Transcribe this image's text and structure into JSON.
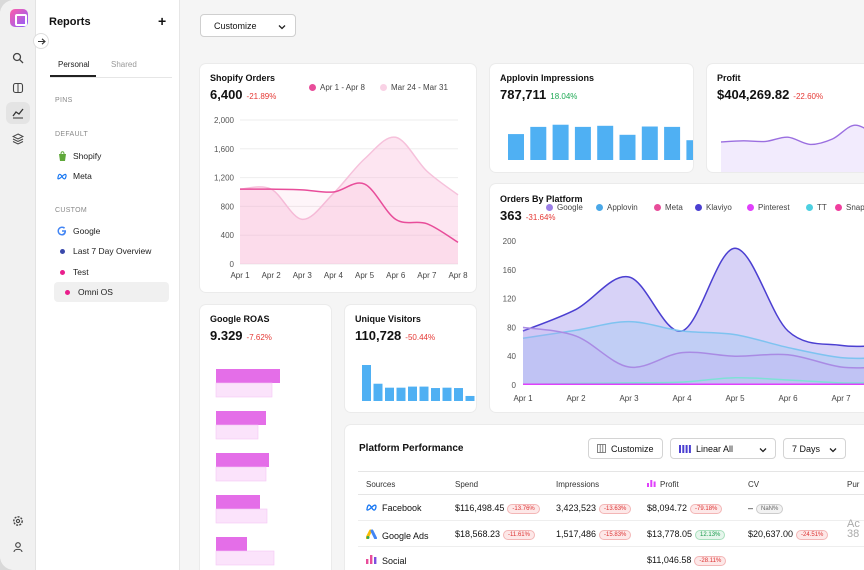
{
  "sidebar": {
    "title": "Reports",
    "tabs": [
      "Personal",
      "Shared"
    ],
    "sections": {
      "pins": "PINS",
      "default": "DEFAULT",
      "custom": "CUSTOM"
    },
    "default_items": [
      {
        "label": "Shopify",
        "icon": "shopify-icon"
      },
      {
        "label": "Meta",
        "icon": "meta-icon"
      }
    ],
    "custom_items": [
      {
        "label": "Google",
        "icon": "google-icon"
      },
      {
        "label": "Last 7 Day Overview",
        "color": "#3949ab"
      },
      {
        "label": "Test",
        "color": "#e91e8c"
      },
      {
        "label": "Omni OS",
        "color": "#e91e8c"
      }
    ]
  },
  "toolbar": {
    "customize_label": "Customize"
  },
  "shopify_orders": {
    "title": "Shopify Orders",
    "value": "6,400",
    "delta": "-21.89%",
    "legend": [
      "Apr 1 - Apr 8",
      "Mar 24 - Mar 31"
    ],
    "legend_colors": [
      "#e84d9a",
      "#f9d2e5"
    ],
    "chart_data": {
      "type": "area",
      "x": [
        "Apr 1",
        "Apr 2",
        "Apr 3",
        "Apr 4",
        "Apr 5",
        "Apr 6",
        "Apr 7",
        "Apr 8"
      ],
      "ylim": [
        0,
        2000
      ],
      "yticks": [
        "0",
        "400",
        "800",
        "1,200",
        "1,600",
        "2,000"
      ],
      "series": [
        {
          "name": "Apr 1 - Apr 8",
          "values": [
            1040,
            1040,
            1030,
            1000,
            1110,
            620,
            560,
            300
          ]
        },
        {
          "name": "Mar 24 - Mar 31",
          "values": [
            1040,
            1040,
            620,
            980,
            1460,
            1760,
            1290,
            960
          ]
        }
      ]
    }
  },
  "applovin": {
    "title": "Applovin Impressions",
    "value": "787,711",
    "delta": "18.04%",
    "chart_data": {
      "type": "bar",
      "values": [
        72,
        92,
        98,
        92,
        95,
        70,
        93,
        92,
        55
      ]
    }
  },
  "profit": {
    "title": "Profit",
    "value": "$404,269.82",
    "delta": "-22.60%",
    "chart_data": {
      "type": "area",
      "values": [
        50,
        52,
        51,
        58,
        46,
        55,
        78,
        60
      ]
    }
  },
  "orders_by_platform": {
    "title": "Orders By Platform",
    "value": "363",
    "delta": "-31.64%",
    "legend": [
      "Google",
      "Applovin",
      "Meta",
      "Klaviyo",
      "Pinterest",
      "TT",
      "Snap"
    ],
    "legend_colors": [
      "#9b7fe6",
      "#4aa8e8",
      "#e84d9a",
      "#4b3fd1",
      "#e040fb",
      "#4dd0e1",
      "#f03e9e"
    ],
    "chart_data": {
      "type": "area",
      "x": [
        "Apr 1",
        "Apr 2",
        "Apr 3",
        "Apr 4",
        "Apr 5",
        "Apr 6",
        "Apr 7"
      ],
      "ylim": [
        0,
        200
      ],
      "yticks": [
        "0",
        "40",
        "80",
        "120",
        "160",
        "200"
      ],
      "series": [
        {
          "name": "Klaviyo",
          "values": [
            75,
            105,
            150,
            75,
            190,
            75,
            55
          ]
        },
        {
          "name": "Applovin",
          "values": [
            65,
            76,
            88,
            75,
            70,
            52,
            38
          ]
        },
        {
          "name": "Google",
          "values": [
            80,
            68,
            25,
            45,
            40,
            42,
            25
          ]
        },
        {
          "name": "TT",
          "values": [
            1,
            2,
            3,
            4,
            10,
            7,
            3
          ]
        },
        {
          "name": "Meta",
          "values": [
            1,
            1,
            1,
            1,
            1,
            1,
            1
          ]
        }
      ]
    }
  },
  "google_roas": {
    "title": "Google ROAS",
    "value": "9.329",
    "delta": "-7.62%",
    "chart_data": {
      "type": "bar",
      "orientation": "horizontal",
      "series": [
        {
          "name": "current",
          "values": [
            64,
            50,
            53,
            44,
            31
          ]
        },
        {
          "name": "previous",
          "values": [
            56,
            42,
            50,
            51,
            58
          ]
        }
      ]
    }
  },
  "unique_visitors": {
    "title": "Unique Visitors",
    "value": "110,728",
    "delta": "-50.44%",
    "chart_data": {
      "type": "bar",
      "values": [
        100,
        48,
        37,
        37,
        40,
        40,
        36,
        37,
        36,
        14
      ]
    }
  },
  "platform_performance": {
    "title": "Platform Performance",
    "customize_label": "Customize",
    "linear_label": "Linear All",
    "days_label": "7 Days",
    "columns": [
      "Sources",
      "Spend",
      "Impressions",
      "Profit",
      "CV",
      "Pur"
    ],
    "rows": [
      {
        "source": "Facebook",
        "icon": "meta-icon",
        "spend": "$116,498.45",
        "spend_delta": "-13.76%",
        "impressions": "3,423,523",
        "imp_delta": "-13.63%",
        "profit": "$8,094.72",
        "profit_delta": "-79.18%",
        "cv": "",
        "cv_delta": "NaN%",
        "pur": "",
        "pur_delta": ""
      },
      {
        "source": "Google Ads",
        "icon": "google-ads-icon",
        "spend": "$18,568.23",
        "spend_delta": "-11.61%",
        "impressions": "1,517,486",
        "imp_delta": "-15.83%",
        "profit": "$13,778.05",
        "profit_delta": "12.13%",
        "cv": "$20,637.00",
        "cv_delta": "-24.51%",
        "pur": "Ac",
        "pur_delta": "38"
      },
      {
        "source": "Social",
        "icon": "social-icon",
        "spend": "",
        "spend_delta": "",
        "impressions": "",
        "imp_delta": "",
        "profit": "$11,046.58",
        "profit_delta": "-28.11%",
        "cv": "",
        "cv_delta": "",
        "pur": "",
        "pur_delta": ""
      }
    ]
  }
}
